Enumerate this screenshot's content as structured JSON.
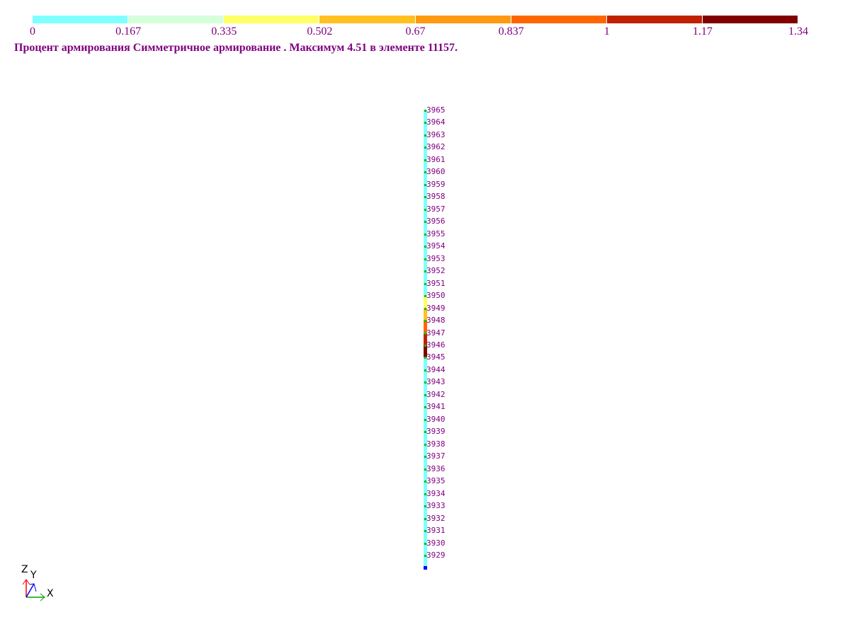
{
  "legend": {
    "colors": [
      "#80ffff",
      "#d4ffd8",
      "#ffff66",
      "#ffc020",
      "#ff9a10",
      "#ff6600",
      "#c02000",
      "#800000"
    ],
    "ticks": [
      "0",
      "0.167",
      "0.335",
      "0.502",
      "0.67",
      "0.837",
      "1",
      "1.17",
      "1.34"
    ]
  },
  "caption": "Процент армирования Симметричное армирование . Максимум 4.51 в элементе 11157.",
  "column": {
    "base_color": "#80ffff",
    "nodes": [
      "3965",
      "3964",
      "3963",
      "3962",
      "3961",
      "3960",
      "3959",
      "3958",
      "3957",
      "3956",
      "3955",
      "3954",
      "3953",
      "3952",
      "3951",
      "3950",
      "3949",
      "3948",
      "3947",
      "3946",
      "3945",
      "3944",
      "3943",
      "3942",
      "3941",
      "3940",
      "3939",
      "3938",
      "3937",
      "3936",
      "3935",
      "3934",
      "3933",
      "3932",
      "3931",
      "3930",
      "3929"
    ],
    "colored_segments": [
      {
        "from": "3950",
        "to": "3949",
        "color": "#ffff66"
      },
      {
        "from": "3949",
        "to": "3948",
        "color": "#ffc020"
      },
      {
        "from": "3948",
        "to": "3947",
        "color": "#ff6600"
      },
      {
        "from": "3947",
        "to": "3946",
        "color": "#c02000"
      },
      {
        "from": "3946",
        "to": "3945",
        "color": "#800000"
      }
    ]
  },
  "axes": {
    "x": "X",
    "y": "Y",
    "z": "Z"
  }
}
